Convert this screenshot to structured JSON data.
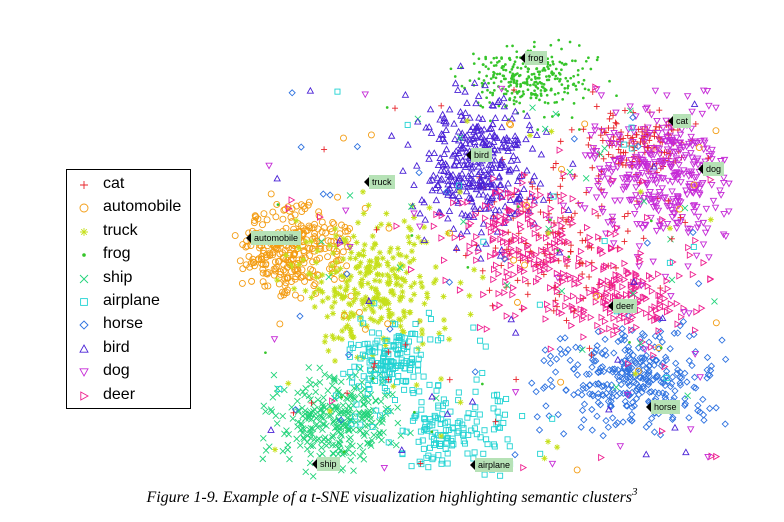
{
  "chart_data": {
    "type": "scatter",
    "title": "",
    "xlabel": "",
    "ylabel": "",
    "legend_position": "left",
    "series": [
      {
        "name": "cat",
        "marker": "plus",
        "color": "#e8232a"
      },
      {
        "name": "automobile",
        "marker": "circle",
        "color": "#f39c12"
      },
      {
        "name": "truck",
        "marker": "star",
        "color": "#c6e01b"
      },
      {
        "name": "frog",
        "marker": "dot",
        "color": "#36c52a"
      },
      {
        "name": "ship",
        "marker": "x",
        "color": "#22d47a"
      },
      {
        "name": "airplane",
        "marker": "square",
        "color": "#22d3d3"
      },
      {
        "name": "horse",
        "marker": "diamond",
        "color": "#2e72e0"
      },
      {
        "name": "bird",
        "marker": "triangle-up",
        "color": "#4a22d6"
      },
      {
        "name": "dog",
        "marker": "triangle-down",
        "color": "#c52ad6"
      },
      {
        "name": "deer",
        "marker": "triangle-right",
        "color": "#ee1f8f"
      }
    ],
    "cluster_labels": [
      {
        "text": "frog",
        "series": "frog"
      },
      {
        "text": "cat",
        "series": "cat"
      },
      {
        "text": "bird",
        "series": "bird"
      },
      {
        "text": "dog",
        "series": "dog"
      },
      {
        "text": "truck",
        "series": "truck"
      },
      {
        "text": "automobile",
        "series": "automobile"
      },
      {
        "text": "deer",
        "series": "deer"
      },
      {
        "text": "horse",
        "series": "horse"
      },
      {
        "text": "ship",
        "series": "ship"
      },
      {
        "text": "airplane",
        "series": "airplane"
      }
    ]
  },
  "caption": {
    "text": "Figure 1-9. Example of a t-SNE visualization highlighting semantic clusters",
    "footnote": "3"
  }
}
